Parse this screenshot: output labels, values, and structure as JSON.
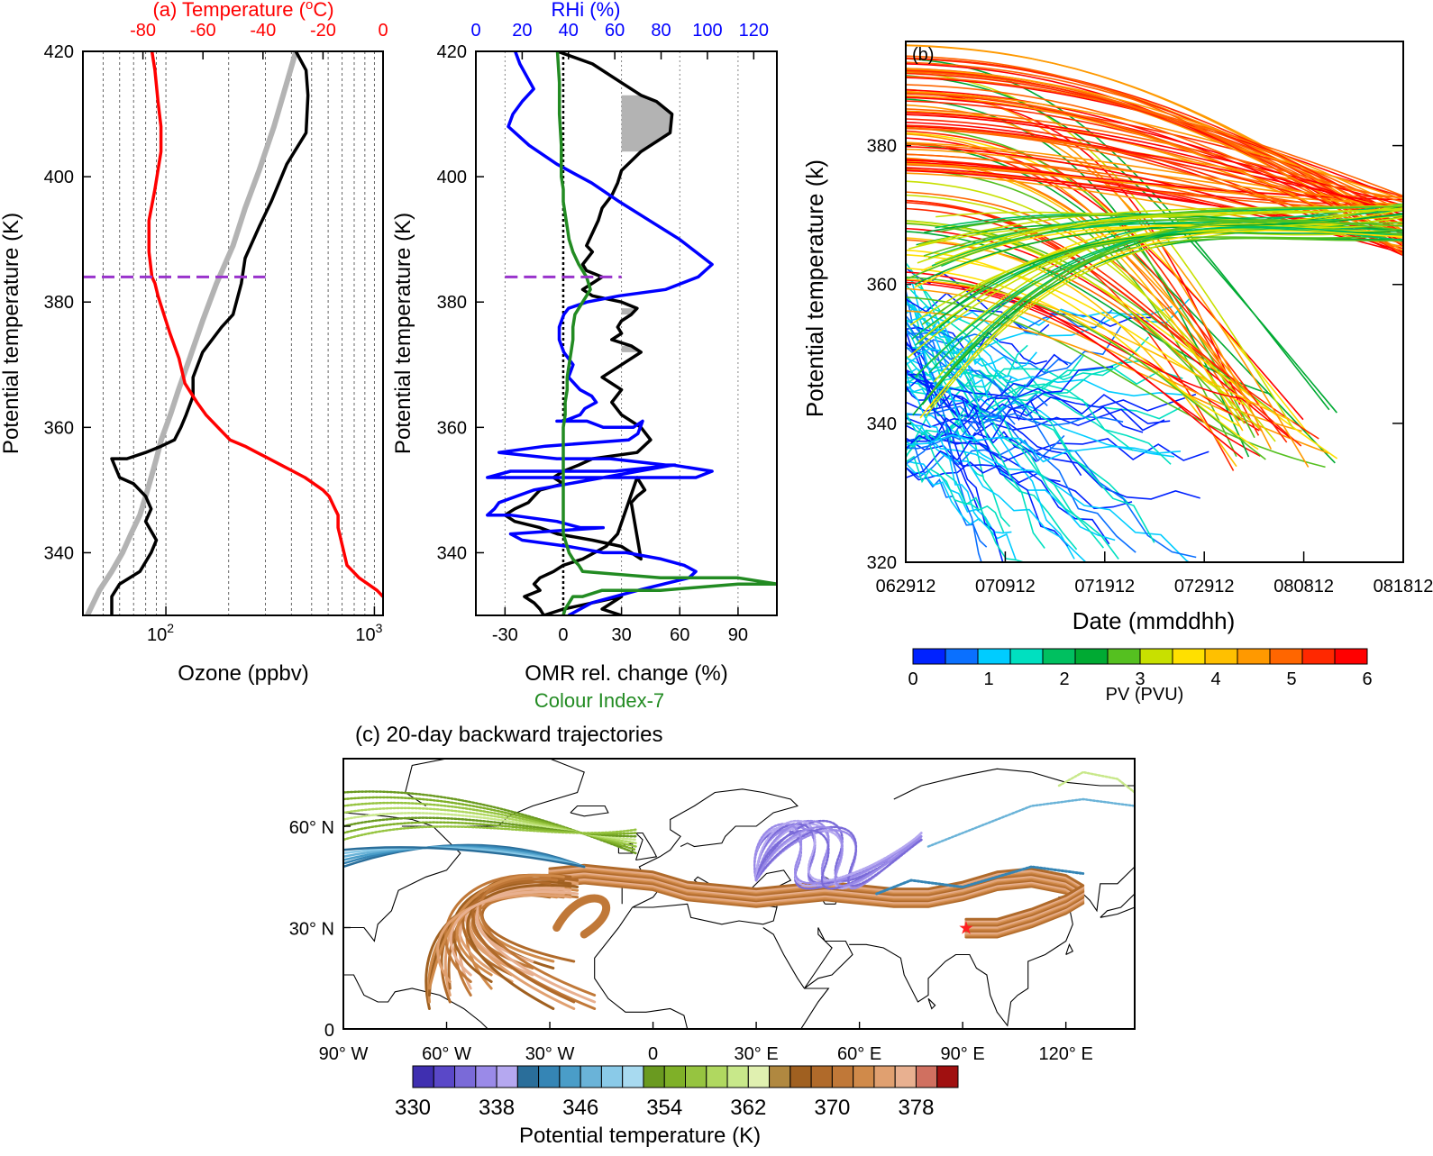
{
  "colors": {
    "temperature": "#ff0000",
    "rhi": "#0000ff",
    "colour_index": "#228b22",
    "ozone": "#000000",
    "ozone_mean": "#b3b3b3",
    "tropopause": "#9933cc",
    "shading": "#b3b3b3"
  },
  "chart_data": [
    {
      "type": "line",
      "title": "(a) Temperature (°C)",
      "ylabel": "Potential temperature (K)",
      "xlabel": "Ozone (ppbv)",
      "x_scale": "log",
      "xlim": [
        40,
        1100
      ],
      "ylim": [
        330,
        420
      ],
      "y_ticks": [
        "340",
        "360",
        "380",
        "400",
        "420"
      ],
      "x_ticks": [
        "10^2",
        "10^3"
      ],
      "x_tick_base": "10",
      "x_tick_exps": [
        "2",
        "3"
      ],
      "top_axis": {
        "label": "(a) Temperature (°C)",
        "range": [
          -100,
          0
        ],
        "ticks": [
          "-80",
          "-60",
          "-40",
          "-20",
          "0"
        ]
      },
      "grid": "vertical dashed",
      "tropopause_theta": 384,
      "series": [
        {
          "key": "temperature",
          "axis": "top",
          "x": [
            -77,
            -76,
            -75,
            -74,
            -74,
            -76,
            -78,
            -78,
            -77,
            -76,
            -75,
            -73,
            -71,
            -68,
            -66,
            -62,
            -59,
            -55,
            -51,
            -46,
            -42,
            -38,
            -34,
            -30,
            -26,
            -23,
            -20,
            -18,
            -16,
            -15,
            -15,
            -14,
            -13,
            -12,
            -10,
            -8,
            -5,
            -2,
            0
          ],
          "y": [
            420,
            417,
            412,
            408,
            404,
            398,
            393,
            388,
            384,
            383,
            381,
            378,
            375,
            371,
            367,
            364,
            362,
            360,
            358,
            357,
            356,
            355,
            354,
            353,
            352,
            351,
            350,
            349,
            347,
            346,
            344,
            342,
            340,
            338,
            337,
            336,
            335,
            334,
            333
          ]
        },
        {
          "key": "ozone",
          "axis": "bottom",
          "x": [
            420,
            470,
            480,
            470,
            380,
            320,
            280,
            240,
            230,
            210,
            185,
            150,
            135,
            135,
            125,
            118,
            110,
            95,
            80,
            65,
            55,
            60,
            70,
            80,
            85,
            80,
            90,
            85,
            75,
            60,
            55,
            55
          ],
          "y": [
            420,
            417,
            413,
            407,
            402,
            396,
            392,
            387,
            383,
            378,
            376,
            372,
            368,
            365,
            362,
            360,
            358,
            357,
            356,
            355,
            355,
            352,
            351,
            349,
            347,
            345,
            342,
            340,
            337,
            335,
            333,
            330
          ]
        },
        {
          "key": "ozone_mean",
          "axis": "bottom",
          "x": [
            420,
            380,
            330,
            280,
            240,
            210,
            175,
            150,
            130,
            115,
            105,
            95,
            90,
            85,
            80,
            75,
            68,
            62,
            55,
            48,
            42
          ],
          "y": [
            420,
            415,
            408,
            401,
            395,
            389,
            383,
            377,
            371,
            366,
            362,
            358,
            355,
            352,
            349,
            346,
            343,
            340,
            337,
            334,
            330
          ]
        }
      ]
    },
    {
      "type": "line",
      "top_label": "RHi (%)",
      "ylabel": "Potential temperature (K)",
      "xlabel": "OMR rel. change (%)",
      "xlabel2": "Colour Index-7",
      "xlim": [
        -45,
        110
      ],
      "ylim": [
        330,
        420
      ],
      "x_ticks": [
        "-30",
        "0",
        "30",
        "60",
        "90"
      ],
      "y_ticks": [
        "340",
        "360",
        "380",
        "400",
        "420"
      ],
      "top_axis": {
        "range": [
          0,
          130
        ],
        "ticks": [
          "0",
          "20",
          "40",
          "60",
          "80",
          "100",
          "120"
        ]
      },
      "grid": "vertical dotted",
      "tropopause_theta": 384,
      "shaded_threshold": 30,
      "series": [
        {
          "key": "omr",
          "x": [
            -3,
            15,
            30,
            40,
            48,
            56,
            55,
            40,
            30,
            28,
            25,
            20,
            18,
            15,
            12,
            15,
            10,
            12,
            20,
            15,
            10,
            15,
            30,
            38,
            35,
            30,
            28,
            30,
            25,
            35,
            40,
            30,
            20,
            30,
            25,
            30,
            40,
            45,
            38,
            15,
            8,
            0,
            -5,
            0,
            -12,
            -15,
            -18,
            -25,
            -30,
            -25,
            -12,
            -3,
            15,
            30,
            35,
            40,
            35,
            38,
            42,
            40,
            38,
            28,
            22,
            10,
            0,
            -5,
            -12,
            -15,
            -12,
            -20,
            -15,
            -12,
            -10,
            0,
            15,
            30,
            20,
            30
          ],
          "y": [
            420,
            418,
            415,
            413,
            412,
            410,
            407,
            404,
            401,
            399,
            397,
            395,
            393,
            391,
            389,
            388,
            386,
            385,
            384,
            383,
            382,
            381,
            380,
            379,
            378,
            377,
            376,
            375,
            374,
            373,
            372,
            370,
            368,
            366,
            364,
            362,
            360,
            358,
            356,
            355,
            354,
            353,
            352,
            351,
            350,
            349,
            348,
            347,
            346,
            345,
            344,
            343,
            342,
            341,
            340,
            339,
            348,
            349,
            350,
            351,
            352,
            343,
            341,
            339,
            338,
            337,
            336,
            335,
            334,
            333,
            332,
            331,
            330,
            331,
            332,
            333,
            331,
            330
          ]
        },
        {
          "key": "rhi",
          "axis": "top",
          "x": [
            17,
            19,
            22,
            25,
            20,
            16,
            14,
            17,
            23,
            35,
            50,
            62,
            75,
            88,
            102,
            96,
            82,
            62,
            48,
            40,
            38,
            36,
            36,
            38,
            42,
            40,
            45,
            50,
            52,
            47,
            45,
            38,
            35,
            48,
            55,
            60,
            62,
            65,
            68,
            72,
            70,
            66,
            30,
            10,
            35,
            58,
            82,
            86,
            60,
            15,
            5,
            12,
            55,
            95,
            102,
            85,
            25,
            10,
            8,
            5,
            15,
            35,
            45,
            55,
            15,
            20,
            40,
            55,
            65,
            80,
            90,
            95,
            92,
            70,
            50,
            40
          ],
          "y": [
            420,
            418,
            416,
            414,
            412,
            410,
            408,
            407,
            405,
            402,
            399,
            396,
            393,
            390,
            386,
            384,
            382,
            381,
            380,
            379,
            378,
            376,
            374,
            372,
            370,
            368,
            366,
            365,
            364,
            363,
            362,
            361,
            361,
            361,
            360,
            360,
            360,
            360,
            360,
            361,
            359,
            358,
            357,
            356,
            355,
            355,
            354,
            354,
            353,
            353,
            352,
            352,
            352,
            352,
            353,
            354,
            350,
            348,
            347,
            346,
            346,
            345,
            344,
            344,
            343,
            342,
            341,
            340,
            340,
            339,
            338,
            337,
            336,
            334,
            332,
            330
          ]
        },
        {
          "key": "colour_index",
          "x": [
            -3,
            -2,
            -2,
            -1,
            -1,
            0,
            0,
            1,
            2,
            3,
            5,
            8,
            10,
            12,
            14,
            12,
            10,
            8,
            6,
            5,
            5,
            4,
            3,
            2,
            2,
            1,
            1,
            0,
            0,
            0,
            0,
            0,
            0,
            1,
            2,
            3,
            5,
            8,
            10,
            50,
            90,
            110,
            90,
            50,
            20,
            10,
            5,
            3,
            1,
            0
          ],
          "y": [
            420,
            415,
            410,
            405,
            400,
            398,
            396,
            394,
            392,
            390,
            388,
            386,
            385,
            384,
            382,
            381,
            380,
            379,
            378,
            376,
            374,
            372,
            370,
            368,
            366,
            364,
            362,
            360,
            356,
            352,
            348,
            345,
            343,
            342,
            341,
            340,
            339,
            338,
            337,
            336,
            336,
            335,
            335,
            334,
            334,
            333,
            333,
            332,
            331,
            330
          ]
        }
      ]
    },
    {
      "type": "scatter",
      "title": "(b)",
      "ylabel": "Potential temperature (k)",
      "xlabel": "Date (mmddhh)",
      "x_ticks": [
        "062912",
        "070912",
        "071912",
        "072912",
        "080812",
        "081812"
      ],
      "ylim": [
        320,
        395
      ],
      "y_ticks": [
        "320",
        "340",
        "360",
        "380"
      ],
      "colorbar": {
        "label": "PV (PVU)",
        "range": [
          0,
          6
        ],
        "ticks": [
          "0",
          "1",
          "2",
          "3",
          "4",
          "5",
          "6"
        ],
        "colors": [
          "#0022ff",
          "#0a70ff",
          "#00ccff",
          "#00e0c0",
          "#00c060",
          "#00aa33",
          "#55c020",
          "#c8e000",
          "#ffe000",
          "#ffc000",
          "#ff9900",
          "#ff6600",
          "#ff2800",
          "#ff0000"
        ]
      }
    },
    {
      "type": "map",
      "title": "(c) 20-day backward trajectories",
      "x_ticks": [
        "90° W",
        "60° W",
        "30° W",
        "0",
        "30° E",
        "60° E",
        "90° E",
        "120° E"
      ],
      "y_ticks": [
        "0",
        "30° N",
        "60° N"
      ],
      "lon_range": [
        -90,
        140
      ],
      "lat_range": [
        0,
        80
      ],
      "source_marker": {
        "lon": 91,
        "lat": 30,
        "color": "#ff2020"
      },
      "colorbar": {
        "label": "Potential  temperature (K)",
        "ticks": [
          "330",
          "338",
          "346",
          "354",
          "362",
          "370",
          "378"
        ],
        "colors": [
          "#3f2fb0",
          "#5a48c8",
          "#7a6ad8",
          "#9a8ae8",
          "#b5a8f0",
          "#2a6e9a",
          "#3585b5",
          "#4a9dc8",
          "#6ab3d8",
          "#8acae8",
          "#a8daf0",
          "#6a9a20",
          "#7fb028",
          "#96c440",
          "#b0d860",
          "#c8e88a",
          "#e0f0b0",
          "#b08840",
          "#a06020",
          "#b06a2a",
          "#c07838",
          "#d08a4a",
          "#e0a070",
          "#e8b090",
          "#d07060",
          "#a01010"
        ]
      }
    }
  ]
}
